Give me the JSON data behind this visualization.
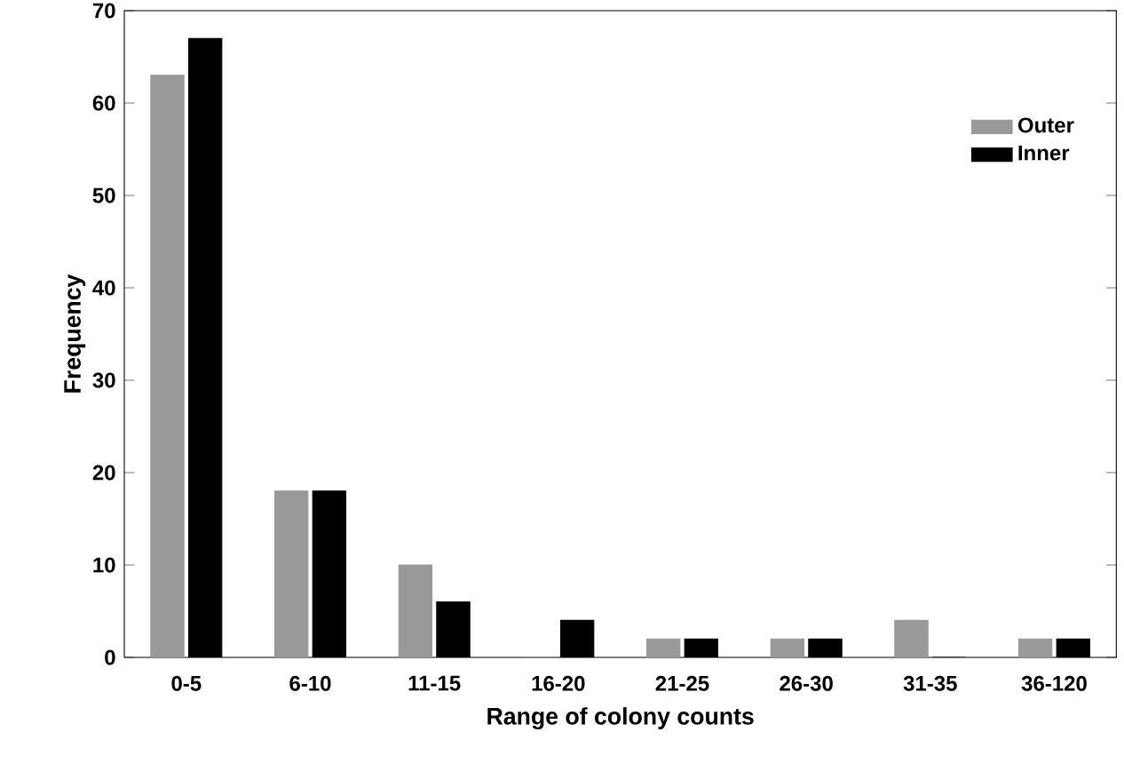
{
  "chart_data": {
    "type": "bar",
    "xlabel": "Range of colony counts",
    "ylabel": "Frequency",
    "categories": [
      "0-5",
      "6-10",
      "11-15",
      "16-20",
      "21-25",
      "26-30",
      "31-35",
      "36-120"
    ],
    "series": [
      {
        "name": "Outer",
        "color": "#999999",
        "values": [
          63,
          18,
          10,
          0,
          2,
          2,
          4,
          2
        ]
      },
      {
        "name": "Inner",
        "color": "#000000",
        "values": [
          67,
          18,
          6,
          4,
          2,
          2,
          0,
          2
        ]
      }
    ],
    "ylim": [
      0,
      70
    ],
    "yticks": [
      0,
      10,
      20,
      30,
      40,
      50,
      60,
      70
    ],
    "grid": false,
    "legend": "top right"
  }
}
